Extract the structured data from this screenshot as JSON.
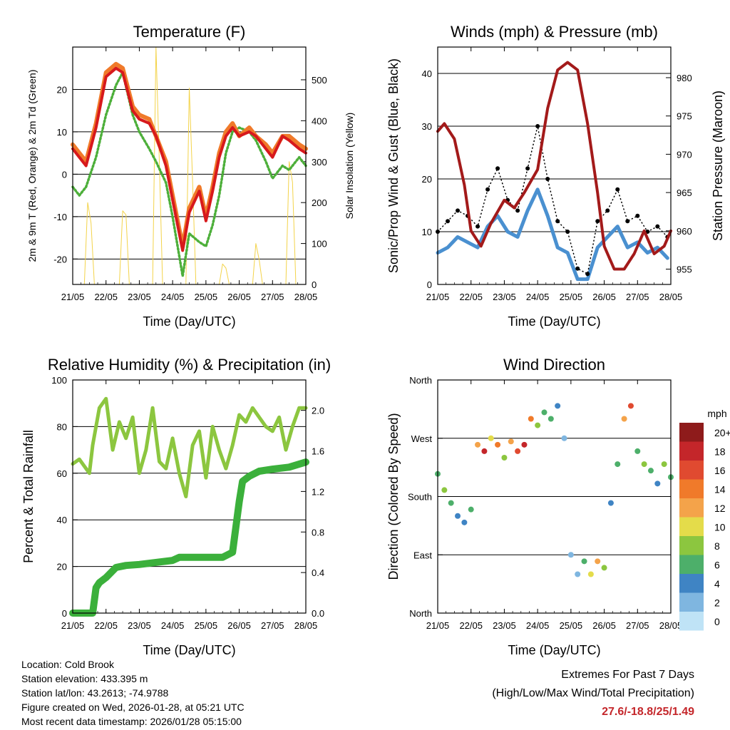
{
  "chart_data": [
    {
      "type": "line",
      "title": "Temperature (F)",
      "xlabel": "Time (Day/UTC)",
      "ylabel": "2m & 9m T (Red, Orange) & 2m Td (Green)",
      "ylabel_right": "Solar Insolation (Yellow)",
      "x_ticks": [
        "21/05",
        "22/05",
        "23/05",
        "24/05",
        "25/05",
        "26/05",
        "27/05",
        "28/05"
      ],
      "ylim": [
        -26,
        30
      ],
      "y_ticks": [
        -20,
        -10,
        0,
        10,
        20
      ],
      "y_tick_labels": [
        "-20",
        "-10",
        "0",
        "10",
        "20"
      ],
      "y2lim": [
        0,
        580
      ],
      "y2_ticks": [
        0,
        100,
        200,
        300,
        400,
        500
      ],
      "y2_tick_labels": [
        "0",
        "100",
        "200",
        "300",
        "400",
        "500"
      ],
      "series": [
        {
          "name": "9m T",
          "color": "#f07a2a",
          "x": [
            0,
            0.2,
            0.4,
            0.7,
            1.0,
            1.3,
            1.5,
            1.8,
            2.0,
            2.3,
            2.5,
            2.8,
            3.0,
            3.3,
            3.5,
            3.8,
            4.0,
            4.2,
            4.4,
            4.6,
            4.8,
            5.0,
            5.3,
            5.5,
            5.8,
            6.0,
            6.3,
            6.5,
            6.8,
            7.0
          ],
          "values": [
            7,
            5,
            3,
            12,
            24,
            26,
            25,
            16,
            14,
            13,
            9,
            3,
            -5,
            -17,
            -8,
            -3,
            -10,
            -3,
            5,
            10,
            12,
            9,
            11,
            9,
            7,
            5,
            9,
            9,
            7,
            6
          ]
        },
        {
          "name": "2m T",
          "color": "#d7191c",
          "x": [
            0,
            0.2,
            0.4,
            0.7,
            1.0,
            1.3,
            1.5,
            1.8,
            2.0,
            2.3,
            2.5,
            2.8,
            3.0,
            3.3,
            3.5,
            3.8,
            4.0,
            4.2,
            4.4,
            4.6,
            4.8,
            5.0,
            5.3,
            5.5,
            5.8,
            6.0,
            6.3,
            6.5,
            6.8,
            7.0
          ],
          "values": [
            6,
            4,
            2,
            11,
            23,
            25,
            24,
            15,
            13,
            12,
            9,
            2,
            -6,
            -18,
            -9,
            -4,
            -11,
            -4,
            4,
            9,
            11,
            9,
            10,
            9,
            6,
            4,
            9,
            8,
            6,
            5
          ]
        },
        {
          "name": "2m Td",
          "color": "#4daf3a",
          "x": [
            0,
            0.2,
            0.4,
            0.7,
            1.0,
            1.3,
            1.5,
            1.8,
            2.0,
            2.3,
            2.5,
            2.8,
            3.0,
            3.3,
            3.5,
            3.8,
            4.0,
            4.2,
            4.4,
            4.6,
            4.8,
            5.0,
            5.3,
            5.5,
            5.8,
            6.0,
            6.3,
            6.5,
            6.8,
            7.0
          ],
          "values": [
            -3,
            -5,
            -3,
            4,
            14,
            21,
            24,
            14,
            10,
            6,
            3,
            -2,
            -10,
            -24,
            -14,
            -16,
            -17,
            -12,
            -5,
            5,
            10,
            11,
            10,
            8,
            3,
            -1,
            2,
            1,
            4,
            2
          ]
        },
        {
          "name": "Solar Insolation",
          "color": "#f3d34a",
          "axis": "right",
          "x": [
            0,
            0.35,
            0.45,
            0.55,
            0.65,
            1.0,
            1.4,
            1.5,
            1.6,
            1.7,
            2.0,
            2.4,
            2.5,
            2.6,
            2.7,
            3.0,
            3.4,
            3.5,
            3.6,
            3.7,
            4.0,
            4.4,
            4.5,
            4.6,
            4.7,
            5.0,
            5.4,
            5.5,
            5.6,
            5.7,
            6.0,
            6.4,
            6.5,
            6.6,
            6.7,
            7.0
          ],
          "values": [
            0,
            0,
            200,
            150,
            0,
            0,
            0,
            180,
            170,
            0,
            0,
            0,
            580,
            300,
            0,
            0,
            0,
            480,
            250,
            0,
            0,
            0,
            50,
            40,
            0,
            0,
            0,
            100,
            60,
            0,
            0,
            0,
            300,
            250,
            0,
            0
          ]
        }
      ]
    },
    {
      "type": "line",
      "title": "Winds (mph) & Pressure (mb)",
      "xlabel": "Time (Day/UTC)",
      "ylabel": "Sonic/Prop Wind & Gust (Blue, Black)",
      "ylabel_right": "Station Pressure (Maroon)",
      "x_ticks": [
        "21/05",
        "22/05",
        "23/05",
        "24/05",
        "25/05",
        "26/05",
        "27/05",
        "28/05"
      ],
      "ylim": [
        0,
        45
      ],
      "y_ticks": [
        0,
        10,
        20,
        30,
        40
      ],
      "y_tick_labels": [
        "0",
        "10",
        "20",
        "30",
        "40"
      ],
      "y2lim": [
        953,
        984
      ],
      "y2_ticks": [
        955,
        960,
        965,
        970,
        975,
        980
      ],
      "y2_tick_labels": [
        "955",
        "960",
        "965",
        "970",
        "975",
        "980"
      ],
      "series": [
        {
          "name": "Gust",
          "color": "#000000",
          "x": [
            0,
            0.3,
            0.6,
            0.9,
            1.2,
            1.5,
            1.8,
            2.1,
            2.4,
            2.7,
            3.0,
            3.3,
            3.6,
            3.9,
            4.2,
            4.5,
            4.8,
            5.1,
            5.4,
            5.7,
            6.0,
            6.3,
            6.6,
            6.9
          ],
          "values": [
            10,
            12,
            14,
            13,
            11,
            18,
            22,
            16,
            14,
            22,
            30,
            20,
            12,
            10,
            3,
            2,
            12,
            14,
            18,
            12,
            13,
            10,
            11,
            9
          ]
        },
        {
          "name": "Wind",
          "color": "#4a90d0",
          "x": [
            0,
            0.3,
            0.6,
            0.9,
            1.2,
            1.5,
            1.8,
            2.1,
            2.4,
            2.7,
            3.0,
            3.3,
            3.6,
            3.9,
            4.2,
            4.5,
            4.8,
            5.1,
            5.4,
            5.7,
            6.0,
            6.3,
            6.6,
            6.9
          ],
          "values": [
            6,
            7,
            9,
            8,
            7,
            11,
            13,
            10,
            9,
            14,
            18,
            13,
            7,
            6,
            1,
            1,
            7,
            9,
            11,
            7,
            8,
            6,
            7,
            5
          ]
        },
        {
          "name": "Pressure",
          "color": "#a31a1a",
          "axis": "right",
          "x": [
            0,
            0.2,
            0.5,
            0.8,
            1.0,
            1.3,
            1.6,
            2.0,
            2.3,
            2.6,
            3.0,
            3.3,
            3.6,
            3.9,
            4.2,
            4.5,
            4.8,
            5.0,
            5.3,
            5.6,
            5.9,
            6.2,
            6.5,
            6.8,
            7.0
          ],
          "values": [
            973,
            974,
            972,
            966,
            960,
            958,
            961,
            964,
            963,
            965,
            968,
            976,
            981,
            982,
            981,
            974,
            965,
            958,
            955,
            955,
            957,
            960,
            957,
            958,
            960
          ]
        }
      ]
    },
    {
      "type": "line",
      "title": "Relative Humidity (%) & Precipitation (in)",
      "xlabel": "Time (Day/UTC)",
      "ylabel": "Percent & Total Rainfall",
      "x_ticks": [
        "21/05",
        "22/05",
        "23/05",
        "24/05",
        "25/05",
        "26/05",
        "27/05",
        "28/05"
      ],
      "ylim": [
        0,
        100
      ],
      "y_ticks": [
        0,
        20,
        40,
        60,
        80,
        100
      ],
      "y_tick_labels": [
        "0",
        "20",
        "40",
        "60",
        "80",
        "100"
      ],
      "y2lim": [
        0,
        2.3
      ],
      "y2_ticks": [
        0,
        0.4,
        0.8,
        1.2,
        1.6,
        2.0
      ],
      "y2_tick_labels": [
        "0.0",
        "0.4",
        "0.8",
        "1.2",
        "1.6",
        "2.0"
      ],
      "series": [
        {
          "name": "Relative Humidity",
          "color": "#8cc63f",
          "x": [
            0,
            0.2,
            0.4,
            0.5,
            0.6,
            0.8,
            1.0,
            1.2,
            1.4,
            1.6,
            1.8,
            2.0,
            2.2,
            2.4,
            2.6,
            2.8,
            3.0,
            3.2,
            3.4,
            3.6,
            3.8,
            4.0,
            4.2,
            4.4,
            4.6,
            4.8,
            5.0,
            5.2,
            5.4,
            5.6,
            5.8,
            6.0,
            6.2,
            6.4,
            6.6,
            6.8,
            7.0
          ],
          "values": [
            64,
            66,
            62,
            60,
            72,
            88,
            92,
            70,
            82,
            75,
            84,
            60,
            70,
            88,
            65,
            62,
            75,
            60,
            50,
            72,
            78,
            58,
            80,
            70,
            62,
            72,
            85,
            82,
            88,
            84,
            80,
            78,
            84,
            70,
            80,
            88,
            88
          ]
        },
        {
          "name": "Total Precipitation",
          "color": "#3bb03b",
          "axis": "right",
          "x": [
            0,
            0.3,
            0.6,
            0.7,
            0.8,
            1.0,
            1.3,
            1.6,
            2.0,
            2.5,
            3.0,
            3.2,
            3.5,
            4.0,
            4.5,
            4.8,
            5.0,
            5.1,
            5.3,
            5.6,
            6.0,
            6.5,
            7.0
          ],
          "values": [
            0,
            0,
            0,
            0.25,
            0.3,
            0.35,
            0.45,
            0.47,
            0.48,
            0.5,
            0.52,
            0.55,
            0.55,
            0.55,
            0.55,
            0.6,
            1.1,
            1.3,
            1.35,
            1.4,
            1.42,
            1.44,
            1.49
          ]
        }
      ]
    },
    {
      "type": "scatter",
      "title": "Wind Direction",
      "xlabel": "Time (Day/UTC)",
      "ylabel": "Direction (Colored By Speed)",
      "x_ticks": [
        "21/05",
        "22/05",
        "23/05",
        "24/05",
        "25/05",
        "26/05",
        "27/05",
        "28/05"
      ],
      "ylim": [
        0,
        360
      ],
      "y_ticks": [
        0,
        90,
        180,
        270,
        360
      ],
      "y_tick_labels": [
        "North",
        "East",
        "South",
        "West",
        "North"
      ],
      "colorbar_title": "mph",
      "colorbar_labels": [
        "20+",
        "18",
        "16",
        "14",
        "12",
        "10",
        "8",
        "6",
        "4",
        "2",
        "0"
      ],
      "colorbar_colors": [
        "#8e1b1b",
        "#c4262a",
        "#e04a30",
        "#f07a2a",
        "#f4a34a",
        "#e4dc4a",
        "#8cc63f",
        "#4daf6a",
        "#3f84c4",
        "#7fb6e0",
        "#bfe3f6"
      ],
      "x": [
        0,
        0.2,
        0.4,
        0.6,
        0.8,
        1.0,
        1.2,
        1.4,
        1.6,
        1.8,
        2.0,
        2.2,
        2.4,
        2.6,
        2.8,
        3.0,
        3.2,
        3.4,
        3.6,
        3.8,
        4.0,
        4.2,
        4.4,
        4.6,
        4.8,
        5.0,
        5.2,
        5.4,
        5.6,
        5.8,
        6.0,
        6.2,
        6.4,
        6.6,
        6.8,
        7.0
      ],
      "directions": [
        215,
        190,
        170,
        150,
        140,
        160,
        260,
        250,
        270,
        260,
        240,
        265,
        250,
        260,
        300,
        290,
        310,
        300,
        320,
        270,
        90,
        60,
        80,
        60,
        80,
        70,
        170,
        230,
        300,
        320,
        250,
        230,
        220,
        200,
        230,
        210
      ],
      "speeds": [
        6,
        8,
        5,
        4,
        3,
        5,
        12,
        18,
        10,
        14,
        8,
        12,
        16,
        18,
        14,
        8,
        6,
        6,
        3,
        2,
        2,
        2,
        6,
        10,
        12,
        8,
        3,
        6,
        12,
        16,
        6,
        8,
        6,
        4,
        8,
        6
      ]
    }
  ],
  "info": {
    "location": "Location: Cold Brook",
    "elevation": "Station elevation: 433.395 m",
    "latlon": "Station lat/lon: 43.2613; -74.9788",
    "created": "Figure created on Wed, 2026-01-28, at 05:21 UTC",
    "recent": "Most recent data timestamp: 2026/01/28 05:15:00"
  },
  "extremes": {
    "line1": "Extremes For Past 7 Days",
    "line2": "(High/Low/Max Wind/Total Precipitation)",
    "values": "27.6/-18.8/25/1.49",
    "values_color": "#c4262a"
  }
}
